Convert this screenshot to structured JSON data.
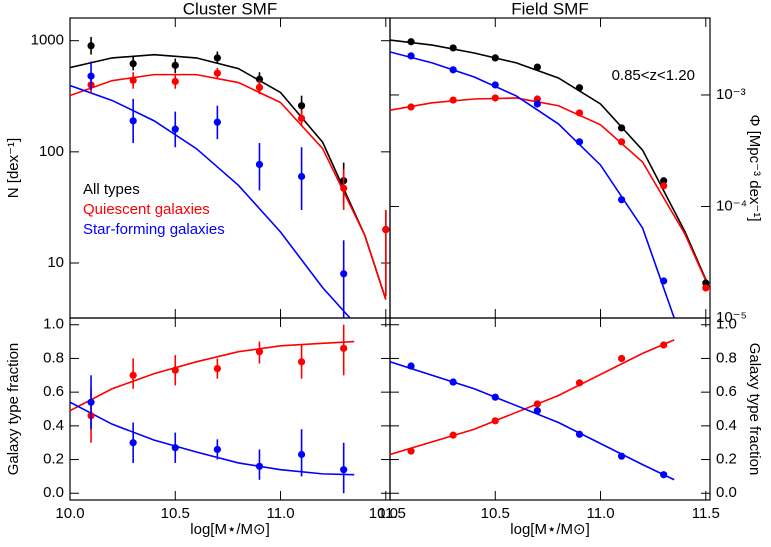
{
  "chart_data": [
    {
      "type": "scatter",
      "title": "Cluster SMF",
      "y_label": "N [dex⁻¹]",
      "log_y": true,
      "yaxis_side": "left",
      "xlim": [
        10.0,
        11.52
      ],
      "ylim": [
        3.2,
        1600
      ],
      "yticks": [
        10,
        100,
        1000
      ],
      "legend": "lower left",
      "series": [
        {
          "name": "All types",
          "color": "#000000",
          "x": [
            10.1,
            10.3,
            10.5,
            10.7,
            10.9,
            11.1,
            11.3,
            11.5
          ],
          "values": [
            900,
            620,
            600,
            700,
            450,
            260,
            55,
            20
          ],
          "err_low": [
            750,
            540,
            510,
            620,
            400,
            210,
            35,
            5
          ],
          "err_high": [
            1080,
            720,
            690,
            800,
            520,
            320,
            80,
            30
          ]
        },
        {
          "name": "Quiescent galaxies",
          "color": "#ff0000",
          "x": [
            10.1,
            10.3,
            10.5,
            10.7,
            10.9,
            11.1,
            11.3,
            11.5
          ],
          "values": [
            400,
            440,
            430,
            510,
            380,
            200,
            47,
            20
          ],
          "err_low": [
            340,
            370,
            370,
            460,
            330,
            170,
            30,
            5
          ],
          "err_high": [
            480,
            520,
            500,
            570,
            440,
            240,
            70,
            30
          ]
        },
        {
          "name": "Star-forming galaxies",
          "color": "#0000ff",
          "x": [
            10.1,
            10.3,
            10.5,
            10.7,
            10.9,
            11.1,
            11.3
          ],
          "values": [
            480,
            190,
            160,
            185,
            77,
            60,
            8
          ],
          "err_low": [
            360,
            120,
            110,
            130,
            45,
            30,
            3.2
          ],
          "err_high": [
            650,
            300,
            230,
            260,
            120,
            110,
            16
          ]
        }
      ],
      "fits": [
        {
          "color": "#000000",
          "x": [
            10.0,
            10.2,
            10.4,
            10.6,
            10.8,
            11.0,
            11.2,
            11.4,
            11.5
          ],
          "values": [
            573,
            700,
            748,
            700,
            561,
            342,
            122,
            17.8,
            4.7
          ]
        },
        {
          "color": "#ff0000",
          "x": [
            10.0,
            10.2,
            10.4,
            10.6,
            10.8,
            11.0,
            11.2,
            11.4,
            11.5
          ],
          "values": [
            321,
            437,
            495,
            495,
            420,
            278,
            107,
            17.8,
            4.7
          ]
        },
        {
          "color": "#0000ff",
          "x": [
            10.0,
            10.2,
            10.4,
            10.6,
            10.8,
            11.0,
            11.2,
            11.33
          ],
          "values": [
            395,
            290,
            190,
            107,
            50,
            19,
            6,
            3.2
          ]
        }
      ]
    },
    {
      "type": "scatter",
      "title": "Field SMF",
      "y_label": "Φ [Mpc⁻³ dex⁻¹]",
      "annotation": "0.85<z<1.20",
      "log_y": true,
      "yaxis_side": "right",
      "xlim": [
        10.0,
        11.52
      ],
      "ylim": [
        1e-05,
        0.0049
      ],
      "yticks": [
        {
          "value": 1e-05,
          "label": "10⁻⁵"
        },
        {
          "value": 0.0001,
          "label": "10⁻⁴"
        },
        {
          "value": 0.001,
          "label": "10⁻³"
        }
      ],
      "series": [
        {
          "color": "#000000",
          "x": [
            10.1,
            10.3,
            10.5,
            10.7,
            10.9,
            11.1,
            11.3,
            11.5
          ],
          "values": [
            0.003,
            0.00264,
            0.00215,
            0.00178,
            0.00116,
            0.000506,
            0.00017,
            2.06e-05
          ]
        },
        {
          "color": "#ff0000",
          "x": [
            10.1,
            10.3,
            10.5,
            10.7,
            10.9,
            11.1,
            11.3,
            11.5
          ],
          "values": [
            0.00078,
            0.0009,
            0.00094,
            0.00092,
            0.00069,
            0.00038,
            0.000153,
            1.86e-05
          ]
        },
        {
          "color": "#0000ff",
          "x": [
            10.1,
            10.3,
            10.5,
            10.7,
            10.9,
            11.1,
            11.3
          ],
          "values": [
            0.00224,
            0.00168,
            0.00123,
            0.00083,
            0.00038,
            0.000115,
            2.15e-05
          ]
        }
      ],
      "fits": [
        {
          "color": "#000000",
          "x": [
            10.0,
            10.2,
            10.4,
            10.6,
            10.8,
            11.0,
            11.2,
            11.4,
            11.58
          ],
          "values": [
            0.00311,
            0.0028,
            0.00238,
            0.00194,
            0.00142,
            0.00083,
            0.00032,
            6e-05,
            1e-05
          ]
        },
        {
          "color": "#ff0000",
          "x": [
            10.0,
            10.2,
            10.4,
            10.6,
            10.8,
            11.0,
            11.2,
            11.4,
            11.58
          ],
          "values": [
            0.00073,
            0.00085,
            0.00092,
            0.00094,
            0.0008,
            0.00054,
            0.00025,
            5.7e-05,
            1e-05
          ]
        },
        {
          "color": "#0000ff",
          "x": [
            10.0,
            10.2,
            10.4,
            10.6,
            10.8,
            11.0,
            11.2,
            11.35
          ],
          "values": [
            0.00243,
            0.00194,
            0.00145,
            0.00098,
            0.00055,
            0.000235,
            6.4e-05,
            1e-05
          ]
        }
      ]
    },
    {
      "type": "scatter",
      "x_label": "log[M⋆/M⊙]",
      "y_label": "Galaxy type fraction",
      "log_y": false,
      "yaxis_side": "left",
      "xlim": [
        10.0,
        11.52
      ],
      "ylim": [
        -0.04,
        1.04
      ],
      "xticks": [
        {
          "value": 10.0,
          "label": "10.0"
        },
        10.5,
        {
          "value": 11.0,
          "label": "11.0"
        },
        11.5
      ],
      "yticks": [
        {
          "value": 0,
          "label": "0.0"
        },
        0.2,
        0.4,
        0.6,
        0.8,
        {
          "value": 1,
          "label": "1.0"
        }
      ],
      "series": [
        {
          "color": "#ff0000",
          "x": [
            10.1,
            10.3,
            10.5,
            10.7,
            10.9,
            11.1,
            11.3
          ],
          "values": [
            0.46,
            0.7,
            0.73,
            0.74,
            0.84,
            0.78,
            0.86
          ],
          "err_low": [
            0.3,
            0.62,
            0.64,
            0.68,
            0.77,
            0.68,
            0.7
          ],
          "err_high": [
            0.62,
            0.8,
            0.82,
            0.8,
            0.9,
            0.88,
            1.0
          ]
        },
        {
          "color": "#0000ff",
          "x": [
            10.1,
            10.3,
            10.5,
            10.7,
            10.9,
            11.1,
            11.3
          ],
          "values": [
            0.54,
            0.3,
            0.27,
            0.26,
            0.16,
            0.23,
            0.14
          ],
          "err_low": [
            0.38,
            0.18,
            0.18,
            0.2,
            0.08,
            0.1,
            0.0
          ],
          "err_high": [
            0.7,
            0.42,
            0.36,
            0.32,
            0.26,
            0.38,
            0.3
          ]
        }
      ],
      "fits": [
        {
          "color": "#ff0000",
          "x": [
            10.0,
            10.2,
            10.4,
            10.6,
            10.8,
            11.0,
            11.2,
            11.35
          ],
          "values": [
            0.49,
            0.62,
            0.71,
            0.78,
            0.84,
            0.875,
            0.89,
            0.9
          ]
        },
        {
          "color": "#0000ff",
          "x": [
            10.0,
            10.2,
            10.4,
            10.6,
            10.8,
            11.0,
            11.2,
            11.35
          ],
          "values": [
            0.54,
            0.41,
            0.315,
            0.245,
            0.18,
            0.14,
            0.115,
            0.11
          ]
        }
      ]
    },
    {
      "type": "scatter",
      "x_label": "log[M⋆/M⊙]",
      "y_label": "Galaxy type fraction",
      "log_y": false,
      "yaxis_side": "right",
      "xlim": [
        10.0,
        11.52
      ],
      "ylim": [
        -0.04,
        1.04
      ],
      "xticks": [
        {
          "value": 10.0,
          "label": "10.0"
        },
        10.5,
        {
          "value": 11.0,
          "label": "11.0"
        },
        11.5
      ],
      "yticks": [
        {
          "value": 0,
          "label": "0.0"
        },
        0.2,
        0.4,
        0.6,
        0.8,
        {
          "value": 1,
          "label": "1.0"
        }
      ],
      "series": [
        {
          "color": "#ff0000",
          "x": [
            10.1,
            10.3,
            10.5,
            10.7,
            10.9,
            11.1,
            11.3
          ],
          "values": [
            0.25,
            0.345,
            0.43,
            0.53,
            0.655,
            0.8,
            0.88
          ]
        },
        {
          "color": "#0000ff",
          "x": [
            10.1,
            10.3,
            10.5,
            10.7,
            10.9,
            11.1,
            11.3
          ],
          "values": [
            0.755,
            0.66,
            0.57,
            0.49,
            0.35,
            0.22,
            0.11
          ]
        }
      ],
      "fits": [
        {
          "color": "#ff0000",
          "x": [
            10.0,
            10.4,
            10.8,
            11.2,
            11.35
          ],
          "values": [
            0.23,
            0.38,
            0.58,
            0.83,
            0.91
          ]
        },
        {
          "color": "#0000ff",
          "x": [
            10.0,
            10.4,
            10.8,
            11.2,
            11.35
          ],
          "values": [
            0.78,
            0.62,
            0.42,
            0.17,
            0.08
          ]
        }
      ]
    }
  ]
}
